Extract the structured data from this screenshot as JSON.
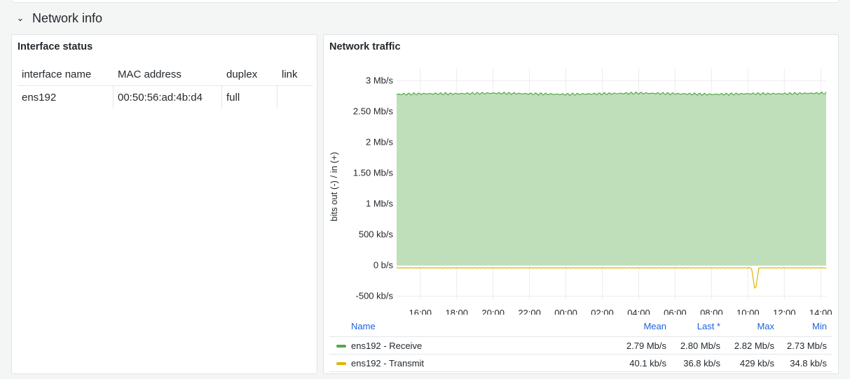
{
  "row": {
    "title": "Network info",
    "chevron_icon": "chevron-down-icon"
  },
  "interface_panel": {
    "title": "Interface status",
    "columns": [
      "interface name",
      "MAC address",
      "duplex",
      "link"
    ],
    "rows": [
      [
        "ens192",
        "00:50:56:ad:4b:d4",
        "full",
        ""
      ]
    ]
  },
  "traffic_panel": {
    "title": "Network traffic",
    "legend": {
      "headers": {
        "name": "Name",
        "mean": "Mean",
        "last": "Last *",
        "max": "Max",
        "min": "Min"
      },
      "rows": [
        {
          "name": "ens192 - Receive",
          "color": "#56a64b",
          "mean": "2.79 Mb/s",
          "last": "2.80 Mb/s",
          "max": "2.82 Mb/s",
          "min": "2.73 Mb/s"
        },
        {
          "name": "ens192 - Transmit",
          "color": "#e0b400",
          "mean": "40.1 kb/s",
          "last": "36.8 kb/s",
          "max": "429 kb/s",
          "min": "34.8 kb/s"
        }
      ]
    }
  },
  "chart_data": {
    "type": "area",
    "ylabel": "bits out (-) / in (+)",
    "y_ticks": [
      "3 Mb/s",
      "2.50 Mb/s",
      "2 Mb/s",
      "1.50 Mb/s",
      "1 Mb/s",
      "500 kb/s",
      "0 b/s",
      "-500 kb/s"
    ],
    "y_tick_values": [
      3,
      2.5,
      2,
      1.5,
      1,
      0.5,
      0,
      -0.5
    ],
    "ylim": [
      -0.55,
      3.2
    ],
    "y_unit": "Mb/s",
    "x_ticks": [
      "16:00",
      "18:00",
      "20:00",
      "22:00",
      "00:00",
      "02:00",
      "04:00",
      "06:00",
      "08:00",
      "10:00",
      "12:00",
      "14:00"
    ],
    "x_tick_hours": [
      0,
      2,
      4,
      6,
      8,
      10,
      12,
      14,
      16,
      18,
      20,
      22
    ],
    "xlim_hours": [
      -1.3,
      22.3
    ],
    "grid": true,
    "series": [
      {
        "name": "ens192 - Receive",
        "color": "#56a64b",
        "fill": "#b8dbb3",
        "x_hours": [
          -1.3,
          0,
          2,
          4,
          6,
          8,
          10,
          12,
          14,
          16,
          18,
          20,
          22,
          22.3
        ],
        "values": [
          2.78,
          2.79,
          2.79,
          2.8,
          2.79,
          2.78,
          2.79,
          2.8,
          2.79,
          2.78,
          2.79,
          2.79,
          2.8,
          2.8
        ]
      },
      {
        "name": "ens192 - Transmit",
        "color": "#e0b400",
        "x_hours": [
          -1.3,
          4,
          10,
          16,
          18.2,
          18.4,
          18.6,
          21.8,
          22,
          22.3
        ],
        "values": [
          -0.04,
          -0.04,
          -0.04,
          -0.04,
          -0.04,
          -0.43,
          -0.04,
          -0.04,
          -0.04,
          -0.04
        ]
      }
    ]
  }
}
